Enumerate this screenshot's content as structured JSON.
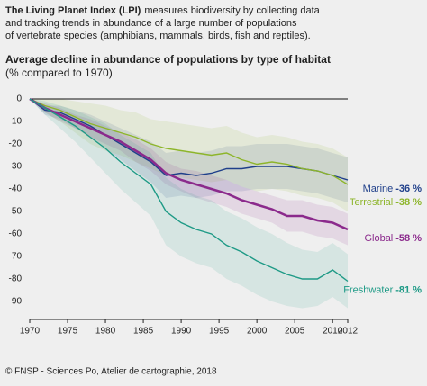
{
  "chart_data": {
    "type": "line",
    "intro": {
      "lead": "The Living Planet Index (LPI)",
      "lines": [
        "measures biodiversity by collecting data",
        "and tracking trends in abundance of a large number of populations",
        "of vertebrate species (amphibians, mammals, birds, fish and reptiles)."
      ]
    },
    "title": "Average decline in abundance of populations by type of habitat",
    "subtitle": "(% compared to 1970)",
    "source": "© FNSP - Sciences Po, Atelier de cartographie, 2018",
    "x": [
      1970,
      1972,
      1974,
      1976,
      1978,
      1980,
      1982,
      1984,
      1986,
      1988,
      1990,
      1992,
      1994,
      1996,
      1998,
      2000,
      2002,
      2004,
      2006,
      2008,
      2010,
      2012
    ],
    "xlim": [
      1970,
      2012
    ],
    "xticks": [
      1970,
      1975,
      1980,
      1985,
      1990,
      1995,
      2000,
      2005,
      2010,
      2012
    ],
    "ylim": [
      -98,
      4
    ],
    "yticks": [
      0,
      -10,
      -20,
      -30,
      -40,
      -50,
      -60,
      -70,
      -80,
      -90
    ],
    "grid": false,
    "zero_line": true,
    "series": [
      {
        "name": "Marine",
        "color": "#1f3f8a",
        "band_color": "#1f3f8a",
        "values": [
          0,
          -5,
          -6,
          -9,
          -12,
          -16,
          -20,
          -24,
          -28,
          -34,
          -33,
          -34,
          -33,
          -31,
          -31,
          -30,
          -30,
          -30,
          -31,
          -32,
          -34,
          -36
        ],
        "upper": [
          0,
          -3,
          -3,
          -5,
          -7,
          -10,
          -13,
          -16,
          -19,
          -24,
          -23,
          -24,
          -23,
          -21,
          -21,
          -20,
          -20,
          -20,
          -21,
          -22,
          -24,
          -26
        ],
        "lower": [
          0,
          -7,
          -9,
          -13,
          -17,
          -22,
          -27,
          -32,
          -37,
          -44,
          -43,
          -44,
          -43,
          -41,
          -41,
          -40,
          -40,
          -40,
          -41,
          -42,
          -44,
          -46
        ],
        "value_labels": [
          null,
          null,
          null,
          null,
          null,
          null,
          null,
          null,
          null,
          null,
          null,
          null,
          null,
          null,
          null,
          null,
          null,
          null,
          null,
          null,
          null,
          "-36 %"
        ]
      },
      {
        "name": "Terrestrial",
        "color": "#8db52a",
        "band_color": "#8db52a",
        "values": [
          0,
          -3,
          -5,
          -8,
          -11,
          -13,
          -15,
          -17,
          -20,
          -22,
          -23,
          -24,
          -25,
          -24,
          -27,
          -29,
          -28,
          -29,
          -31,
          -32,
          -34,
          -38
        ],
        "upper": [
          0,
          0,
          0,
          -1,
          -2,
          -3,
          -5,
          -6,
          -9,
          -10,
          -11,
          -12,
          -13,
          -12,
          -15,
          -17,
          -16,
          -17,
          -19,
          -20,
          -22,
          -26
        ],
        "lower": [
          0,
          -6,
          -10,
          -15,
          -20,
          -23,
          -25,
          -28,
          -31,
          -34,
          -35,
          -36,
          -37,
          -36,
          -39,
          -41,
          -40,
          -41,
          -43,
          -44,
          -46,
          -50
        ],
        "value_labels": [
          null,
          null,
          null,
          null,
          null,
          null,
          null,
          null,
          null,
          null,
          null,
          null,
          null,
          null,
          null,
          null,
          null,
          null,
          null,
          null,
          null,
          "-38 %"
        ]
      },
      {
        "name": "Global",
        "color": "#8b2a8c",
        "band_color": "#8b2a8c",
        "values": [
          0,
          -4,
          -7,
          -10,
          -13,
          -16,
          -19,
          -23,
          -27,
          -33,
          -36,
          -38,
          -40,
          -42,
          -45,
          -47,
          -49,
          -52,
          -52,
          -54,
          -55,
          -58
        ],
        "upper": [
          0,
          -2,
          -4,
          -7,
          -9,
          -12,
          -15,
          -18,
          -22,
          -28,
          -31,
          -32,
          -34,
          -36,
          -39,
          -41,
          -43,
          -45,
          -45,
          -47,
          -48,
          -51
        ],
        "lower": [
          0,
          -6,
          -10,
          -13,
          -17,
          -20,
          -23,
          -28,
          -32,
          -38,
          -41,
          -44,
          -46,
          -48,
          -51,
          -53,
          -55,
          -59,
          -59,
          -61,
          -62,
          -65
        ],
        "value_labels": [
          null,
          null,
          null,
          null,
          null,
          null,
          null,
          null,
          null,
          null,
          null,
          null,
          null,
          null,
          null,
          null,
          null,
          null,
          null,
          null,
          null,
          "-58 %"
        ]
      },
      {
        "name": "Freshwater",
        "color": "#1e9a86",
        "band_color": "#1e9a86",
        "values": [
          0,
          -4,
          -8,
          -12,
          -17,
          -22,
          -28,
          -33,
          -38,
          -50,
          -55,
          -58,
          -60,
          -65,
          -68,
          -72,
          -75,
          -78,
          -80,
          -80,
          -76,
          -81
        ],
        "upper": [
          0,
          -1,
          -3,
          -5,
          -8,
          -11,
          -16,
          -20,
          -24,
          -35,
          -40,
          -43,
          -45,
          -50,
          -53,
          -57,
          -60,
          -64,
          -67,
          -68,
          -64,
          -69
        ],
        "lower": [
          0,
          -7,
          -13,
          -19,
          -26,
          -33,
          -40,
          -46,
          -52,
          -65,
          -70,
          -73,
          -75,
          -80,
          -83,
          -87,
          -90,
          -92,
          -93,
          -92,
          -88,
          -93
        ],
        "value_labels": [
          null,
          null,
          null,
          null,
          null,
          null,
          null,
          null,
          null,
          null,
          null,
          null,
          null,
          null,
          null,
          null,
          null,
          null,
          null,
          null,
          null,
          "-81 %"
        ]
      }
    ]
  }
}
